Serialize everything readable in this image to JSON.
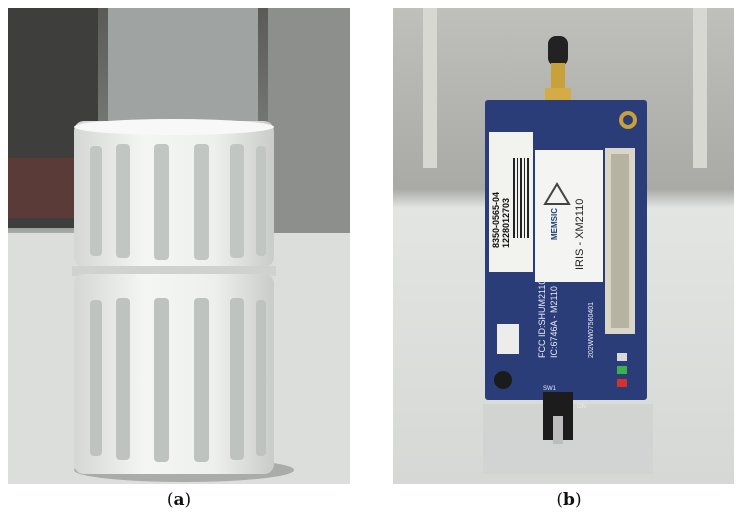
{
  "figure": {
    "panel_a": {
      "label": "a"
    },
    "panel_b": {
      "label": "b",
      "board": {
        "sticker_line1": "8350-0565-04",
        "sticker_line2": "1228012703",
        "brand": "MEMSIC",
        "model": "IRIS - XM2110",
        "fcc": "FCC ID:SHUM2110",
        "ic": "IC:6746A - M2110",
        "reg": "202WW07560401",
        "switch_label": "SW1",
        "on_label": "ON"
      }
    }
  }
}
